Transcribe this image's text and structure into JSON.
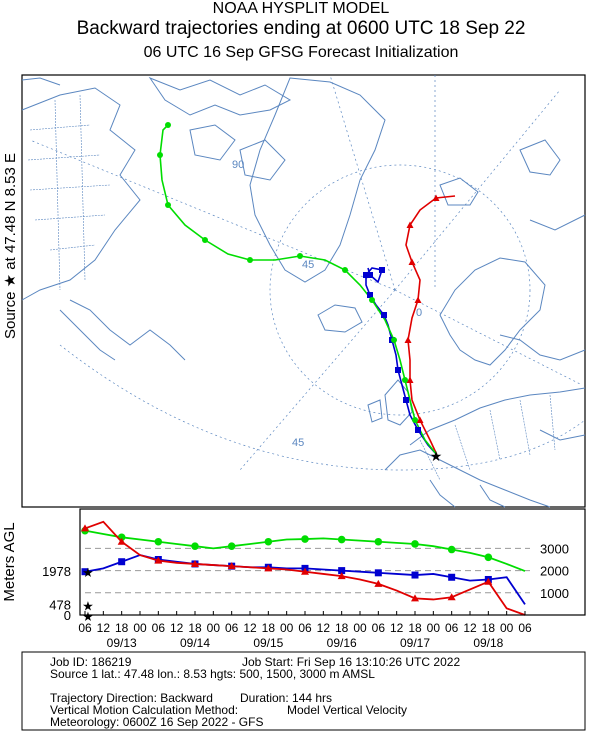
{
  "header": {
    "line1": "NOAA HYSPLIT MODEL",
    "line2": "Backward trajectories ending at 0600 UTC 18 Sep 22",
    "line3": "06 UTC 16 Sep    GFSG  Forecast Initialization"
  },
  "side_label": "Source ★  at   47.48 N    8.53 E",
  "map": {
    "grid_labels": [
      "90",
      "45",
      "0",
      "45"
    ],
    "source_lat": 47.48,
    "source_lon": 8.53,
    "trajectories": [
      {
        "name": "500 m AMSL",
        "color": "#e00000",
        "marker": "triangle"
      },
      {
        "name": "1500 m AMSL",
        "color": "#0000d0",
        "marker": "square"
      },
      {
        "name": "3000 m AMSL",
        "color": "#00dd00",
        "marker": "circle"
      }
    ]
  },
  "chart_data": {
    "type": "line",
    "title": "",
    "ylabel": "Meters AGL",
    "xlabel": "",
    "x_tick_labels": [
      "06",
      "00",
      "18",
      "12",
      "06",
      "00",
      "18",
      "12",
      "06",
      "00",
      "18",
      "12",
      "06",
      "00",
      "18",
      "12",
      "06",
      "00",
      "18",
      "12",
      "06",
      "00",
      "18",
      "12",
      "06"
    ],
    "date_labels": [
      "09/18",
      "09/17",
      "09/16",
      "09/15",
      "09/14",
      "09/13"
    ],
    "left_labels": [
      "1978",
      "478",
      "0"
    ],
    "right_labels": [
      "3000",
      "2000",
      "1000"
    ],
    "x_hours_before_end": [
      0,
      6,
      12,
      18,
      24,
      30,
      36,
      42,
      48,
      54,
      60,
      66,
      72,
      78,
      84,
      90,
      96,
      102,
      108,
      114,
      120,
      126,
      132,
      138,
      144
    ],
    "series": [
      {
        "name": "3000 m AMSL",
        "color": "#00dd00",
        "values": [
          1978,
          2300,
          2600,
          2800,
          2950,
          3100,
          3200,
          3250,
          3300,
          3350,
          3400,
          3450,
          3420,
          3400,
          3300,
          3200,
          3100,
          3000,
          3100,
          3200,
          3300,
          3400,
          3500,
          3650,
          3800
        ]
      },
      {
        "name": "1500 m AMSL",
        "color": "#0000d0",
        "values": [
          478,
          1700,
          1600,
          1550,
          1700,
          1850,
          1800,
          1850,
          1900,
          1950,
          2000,
          2050,
          2100,
          2100,
          2150,
          2150,
          2200,
          2250,
          2300,
          2400,
          2500,
          2700,
          2400,
          2100,
          1950
        ]
      },
      {
        "name": "500 m AMSL",
        "color": "#e00000",
        "values": [
          0,
          300,
          1500,
          1150,
          800,
          700,
          750,
          1100,
          1400,
          1600,
          1750,
          1850,
          1950,
          2050,
          2100,
          2150,
          2200,
          2250,
          2300,
          2350,
          2450,
          2700,
          3300,
          4200,
          3900
        ]
      }
    ]
  },
  "footer": {
    "job_id": "Job ID: 186219",
    "job_start": "Job Start: Fri Sep 16 13:10:26 UTC 2022",
    "source_line": "Source 1 lat.: 47.48  lon.: 8.53  hgts: 500, 1500, 3000 m AMSL",
    "direction": "Trajectory Direction: Backward",
    "duration": "Duration: 144 hrs",
    "vmethod": "Vertical Motion Calculation Method:",
    "vmodel": "Model Vertical Velocity",
    "meteo": "Meteorology: 0600Z 16 Sep 2022 - GFS"
  }
}
